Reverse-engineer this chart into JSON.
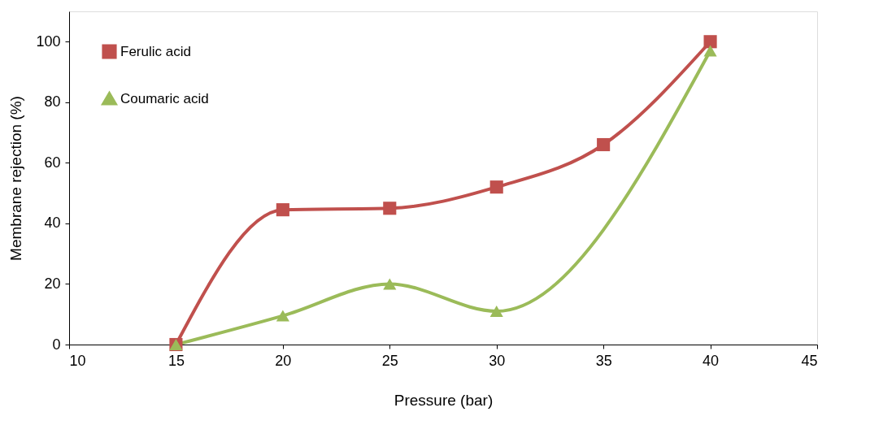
{
  "chart_data": {
    "type": "line",
    "xlabel": "Pressure (bar)",
    "ylabel": "Membrane rejection (%)",
    "xlim": [
      10,
      45
    ],
    "xticks": [
      10,
      15,
      20,
      25,
      30,
      35,
      40,
      45
    ],
    "ylim": [
      0,
      110
    ],
    "yticks": [
      0,
      20,
      40,
      60,
      80,
      100
    ],
    "grid": false,
    "legend": "top left",
    "series": [
      {
        "name": "Ferulic acid",
        "color": "#c0504d",
        "marker": "square",
        "x": [
          15,
          20,
          25,
          30,
          35,
          40
        ],
        "values": [
          0,
          44.5,
          45,
          52,
          66,
          100
        ]
      },
      {
        "name": "Coumaric acid",
        "color": "#9bbb59",
        "marker": "triangle",
        "x": [
          15,
          20,
          25,
          30,
          40
        ],
        "values": [
          0,
          9.5,
          20,
          11,
          97
        ]
      }
    ]
  }
}
